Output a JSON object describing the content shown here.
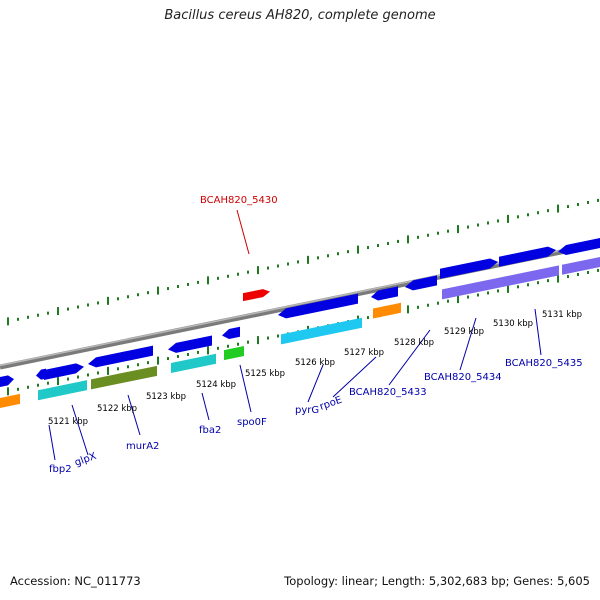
{
  "title": "Bacillus cereus AH820, complete genome",
  "footer": {
    "accession": "Accession: NC_011773",
    "topology": "Topology: linear; Length: 5,302,683 bp; Genes: 5,605"
  },
  "colors": {
    "backbone": "#808080",
    "tick": "#1e7a1e",
    "gene": "#0000e0",
    "label_blue": "#0000aa",
    "label_red": "#cc0000",
    "kbp_text": "#000000"
  },
  "kbp_labels": [
    {
      "label": "5121 kbp"
    },
    {
      "label": "5122 kbp"
    },
    {
      "label": "5123 kbp"
    },
    {
      "label": "5124 kbp"
    },
    {
      "label": "5125 kbp"
    },
    {
      "label": "5126 kbp"
    },
    {
      "label": "5127 kbp"
    },
    {
      "label": "5128 kbp"
    },
    {
      "label": "5129 kbp"
    },
    {
      "label": "5130 kbp"
    },
    {
      "label": "5131 kbp"
    }
  ],
  "gene_labels": [
    {
      "label": "BCAH820_5430",
      "color": "red"
    },
    {
      "label": "fbp2",
      "color": "blue"
    },
    {
      "label": "glpX",
      "color": "blue"
    },
    {
      "label": "murA2",
      "color": "blue"
    },
    {
      "label": "fba2",
      "color": "blue"
    },
    {
      "label": "spo0F",
      "color": "blue"
    },
    {
      "label": "pyrG",
      "color": "blue"
    },
    {
      "label": "rpoE",
      "color": "blue"
    },
    {
      "label": "BCAH820_5433",
      "color": "blue"
    },
    {
      "label": "BCAH820_5434",
      "color": "blue"
    },
    {
      "label": "BCAH820_5435",
      "color": "blue"
    }
  ]
}
